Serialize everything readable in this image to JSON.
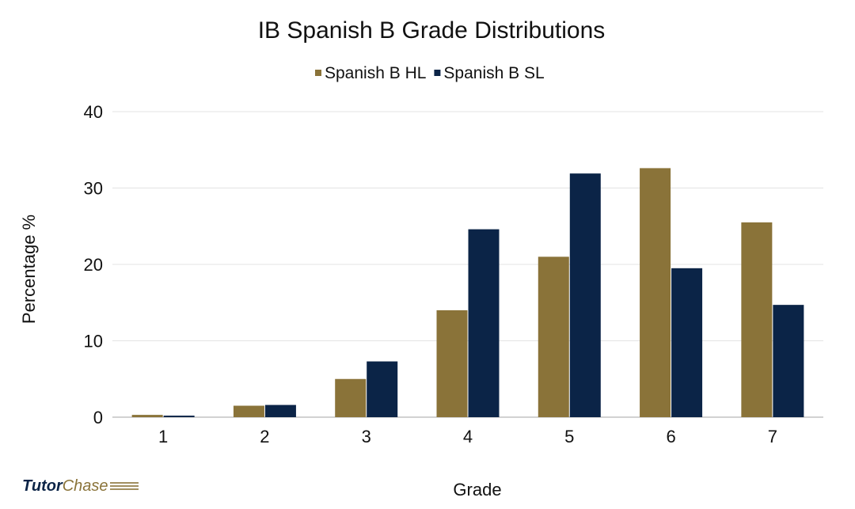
{
  "chart_data": {
    "type": "bar",
    "title": "IB Spanish B Grade Distributions",
    "xlabel": "Grade",
    "ylabel": "Percentage %",
    "categories": [
      "1",
      "2",
      "3",
      "4",
      "5",
      "6",
      "7"
    ],
    "ylim": [
      0,
      40
    ],
    "yticks": [
      0,
      10,
      20,
      30,
      40
    ],
    "grid": true,
    "legend_position": "top",
    "series": [
      {
        "name": "Spanish B HL",
        "color": "#8a7339",
        "values": [
          0.3,
          1.5,
          5.0,
          14.0,
          21.0,
          32.6,
          25.5
        ]
      },
      {
        "name": "Spanish B SL",
        "color": "#0b2447",
        "values": [
          0.2,
          1.6,
          7.3,
          24.6,
          31.9,
          19.5,
          14.7
        ]
      }
    ]
  },
  "logo": {
    "part1": "Tutor",
    "part2": "Chase"
  }
}
